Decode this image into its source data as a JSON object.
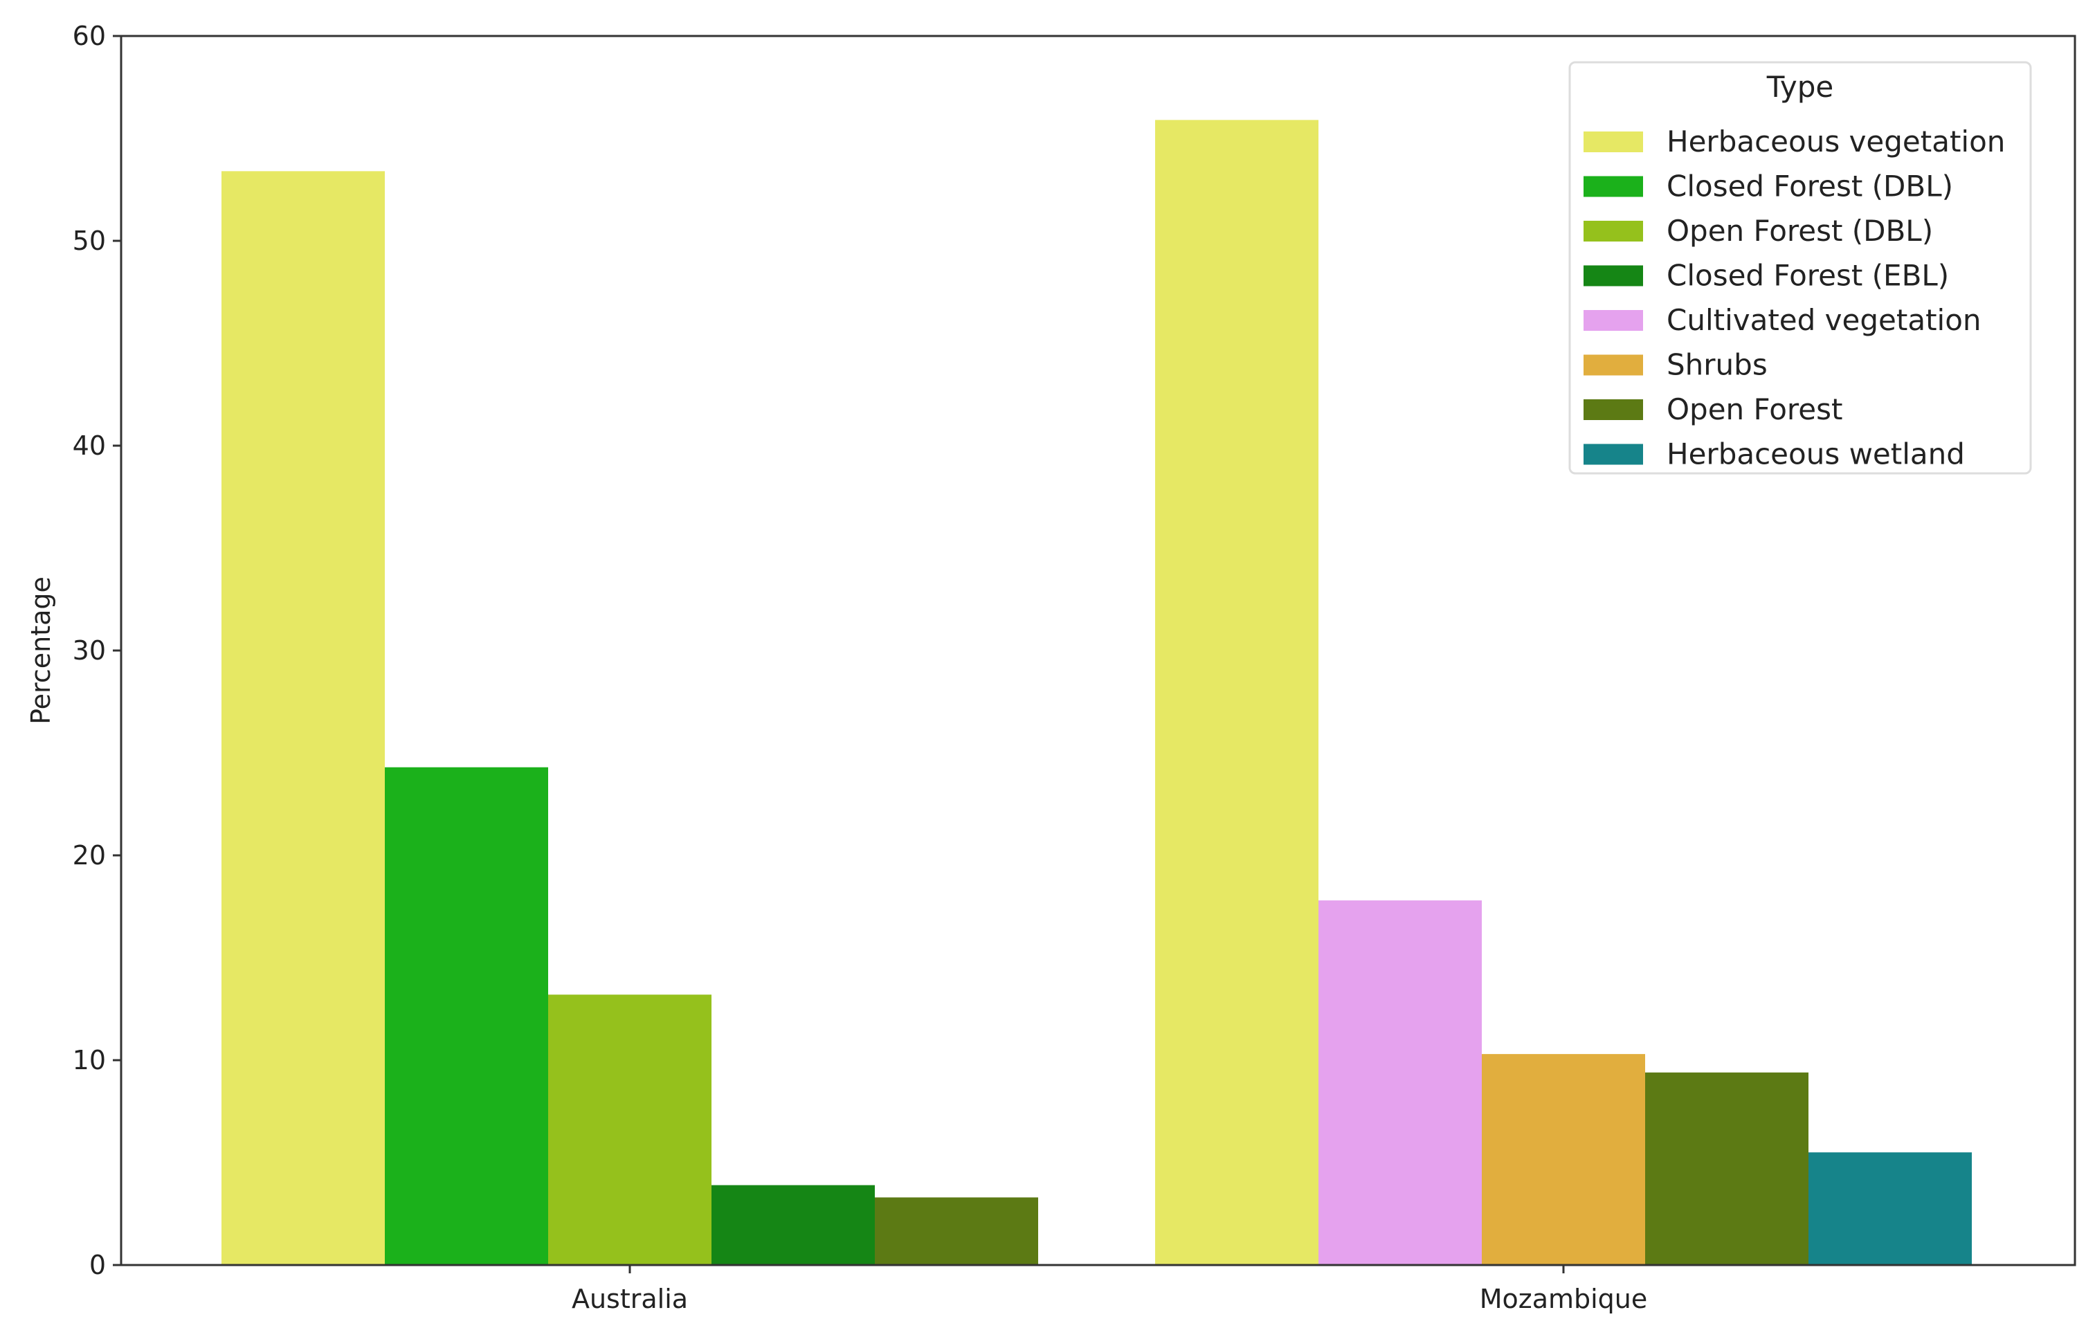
{
  "chart_data": {
    "type": "bar",
    "title": "",
    "xlabel": "",
    "ylabel": "Percentage",
    "ylim": [
      0,
      60
    ],
    "yticks": [
      0,
      10,
      20,
      30,
      40,
      50,
      60
    ],
    "grid": false,
    "categories": [
      "Australia",
      "Mozambique"
    ],
    "legend": {
      "title": "Type",
      "placement": "top-right",
      "entries": [
        {
          "name": "Herbaceous vegetation",
          "color": "#e6e864"
        },
        {
          "name": "Closed Forest (DBL)",
          "color": "#1bb11b"
        },
        {
          "name": "Open Forest (DBL)",
          "color": "#95c11c"
        },
        {
          "name": "Closed Forest (EBL)",
          "color": "#158615"
        },
        {
          "name": "Cultivated vegetation",
          "color": "#e5a2ee"
        },
        {
          "name": "Shrubs",
          "color": "#e1ae3e"
        },
        {
          "name": "Open Forest",
          "color": "#5c7a14"
        },
        {
          "name": "Herbaceous wetland",
          "color": "#16848a"
        }
      ]
    },
    "groups": [
      {
        "category": "Australia",
        "bars": [
          {
            "type": "Herbaceous vegetation",
            "value": 53.4
          },
          {
            "type": "Closed Forest (DBL)",
            "value": 24.3
          },
          {
            "type": "Open Forest (DBL)",
            "value": 13.2
          },
          {
            "type": "Closed Forest (EBL)",
            "value": 3.9
          },
          {
            "type": "Open Forest",
            "value": 3.3
          }
        ]
      },
      {
        "category": "Mozambique",
        "bars": [
          {
            "type": "Herbaceous vegetation",
            "value": 55.9
          },
          {
            "type": "Cultivated vegetation",
            "value": 17.8
          },
          {
            "type": "Shrubs",
            "value": 10.3
          },
          {
            "type": "Open Forest",
            "value": 9.4
          },
          {
            "type": "Herbaceous wetland",
            "value": 5.5
          }
        ]
      }
    ]
  }
}
